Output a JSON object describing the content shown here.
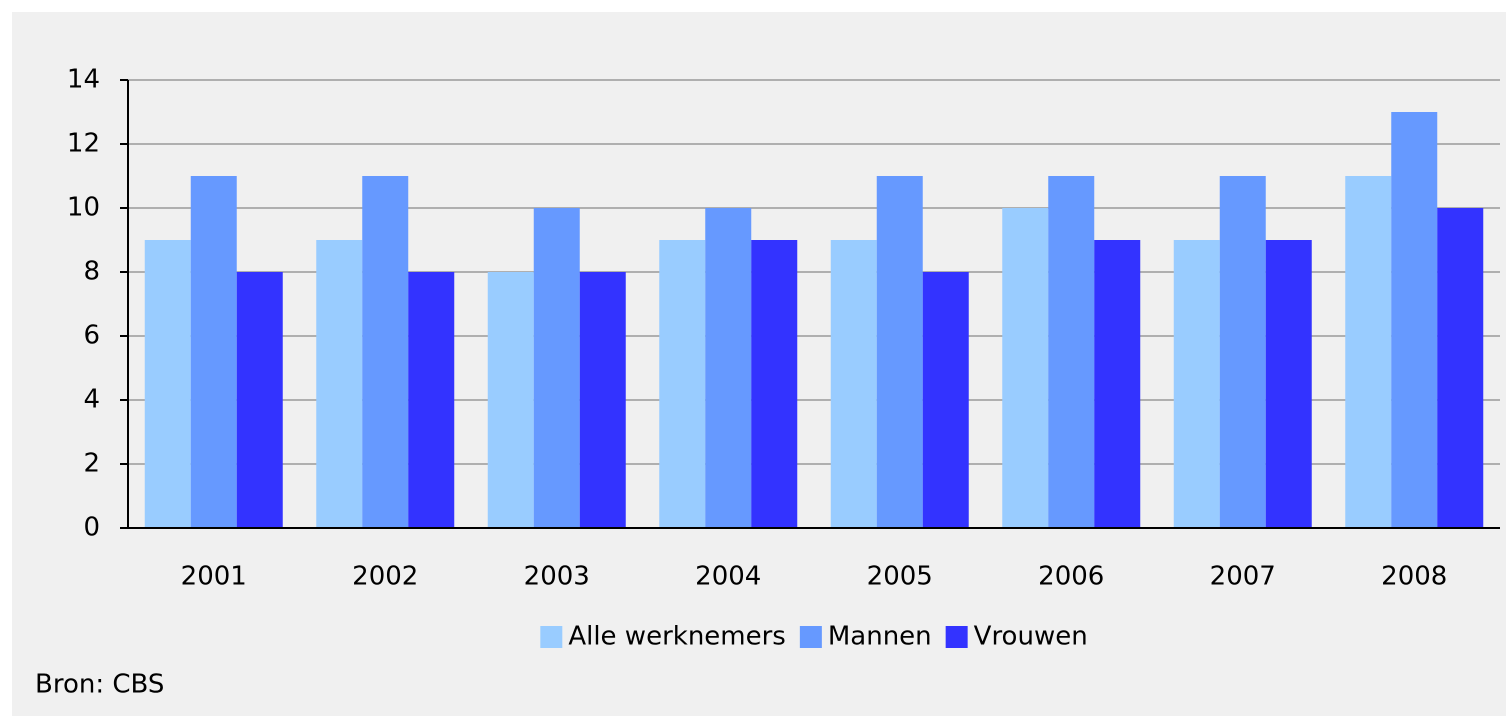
{
  "chart_data": {
    "type": "bar",
    "categories": [
      "2001",
      "2002",
      "2003",
      "2004",
      "2005",
      "2006",
      "2007",
      "2008"
    ],
    "series": [
      {
        "name": "Alle werknemers",
        "color": "#99ccff",
        "values": [
          9,
          9,
          8,
          9,
          9,
          10,
          9,
          11
        ]
      },
      {
        "name": "Mannen",
        "color": "#6699ff",
        "values": [
          11,
          11,
          10,
          10,
          11,
          11,
          11,
          13
        ]
      },
      {
        "name": "Vrouwen",
        "color": "#3333ff",
        "values": [
          8,
          8,
          8,
          9,
          8,
          9,
          9,
          10
        ]
      }
    ],
    "ylim": [
      0,
      14
    ],
    "yticks": [
      0,
      2,
      4,
      6,
      8,
      10,
      12,
      14
    ],
    "grid": true,
    "legend": "bottom",
    "source": "Bron: CBS"
  }
}
